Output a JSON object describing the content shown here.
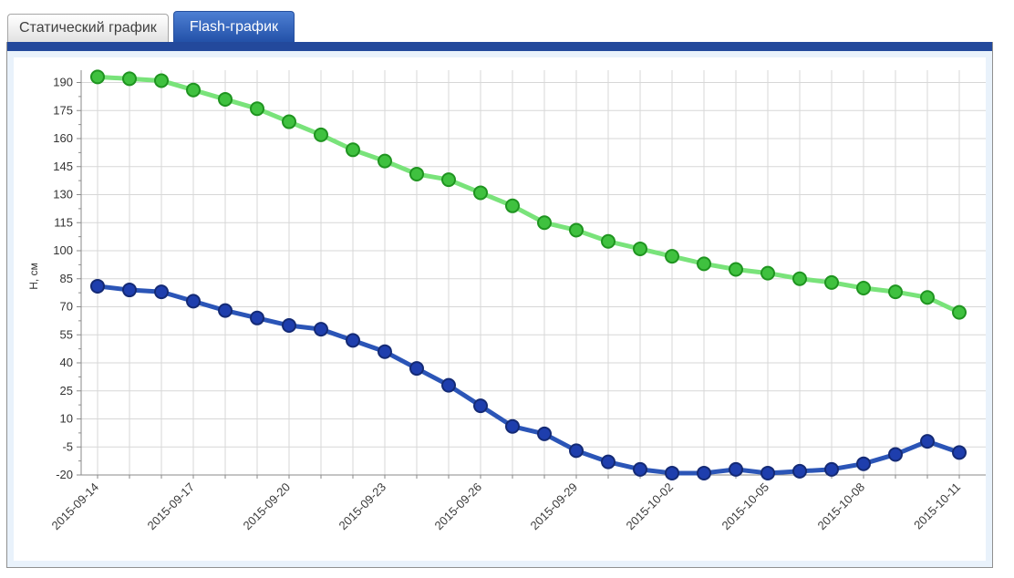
{
  "tabs": [
    {
      "label": "Статический график",
      "active": false
    },
    {
      "label": "Flash-график",
      "active": true
    }
  ],
  "colors": {
    "active_tab_top": "#4d7fd3",
    "active_tab_bottom": "#2351a8",
    "tab_bar": "#23499c",
    "content_background": "#e9f2fb",
    "grid_line": "#d7d7d7",
    "axis_line": "#8a8a8a"
  },
  "chart_data": {
    "type": "line",
    "title": "",
    "xlabel": "",
    "ylabel": "Н, см",
    "ylim": [
      -20,
      190
    ],
    "y_tick_step": 15,
    "grid": true,
    "legend": "none",
    "x": [
      "2015-09-14",
      "2015-09-15",
      "2015-09-16",
      "2015-09-17",
      "2015-09-18",
      "2015-09-19",
      "2015-09-20",
      "2015-09-21",
      "2015-09-22",
      "2015-09-23",
      "2015-09-24",
      "2015-09-25",
      "2015-09-26",
      "2015-09-27",
      "2015-09-28",
      "2015-09-29",
      "2015-09-30",
      "2015-10-01",
      "2015-10-02",
      "2015-10-03",
      "2015-10-04",
      "2015-10-05",
      "2015-10-06",
      "2015-10-07",
      "2015-10-08",
      "2015-10-09",
      "2015-10-10",
      "2015-10-11"
    ],
    "x_tick_labels": [
      "2015-09-14",
      "2015-09-17",
      "2015-09-20",
      "2015-09-23",
      "2015-09-26",
      "2015-09-29",
      "2015-10-02",
      "2015-10-05",
      "2015-10-08",
      "2015-10-11"
    ],
    "series": [
      {
        "name": "series-green",
        "line_color": "#79e37a",
        "point_color": "#3fc13f",
        "point_border": "#1f9420",
        "values": [
          193,
          192,
          191,
          186,
          181,
          176,
          169,
          162,
          154,
          148,
          141,
          138,
          131,
          124,
          115,
          111,
          105,
          101,
          97,
          93,
          90,
          88,
          85,
          83,
          80,
          78,
          75,
          67
        ]
      },
      {
        "name": "series-blue",
        "line_color": "#2b55b7",
        "point_color": "#1e3ead",
        "point_border": "#142a75",
        "values": [
          81,
          79,
          78,
          73,
          68,
          64,
          60,
          58,
          52,
          46,
          37,
          28,
          17,
          6,
          2,
          -7,
          -13,
          -17,
          -19,
          -19,
          -17,
          -19,
          -18,
          -17,
          -14,
          -9,
          -2,
          -8
        ]
      }
    ]
  }
}
